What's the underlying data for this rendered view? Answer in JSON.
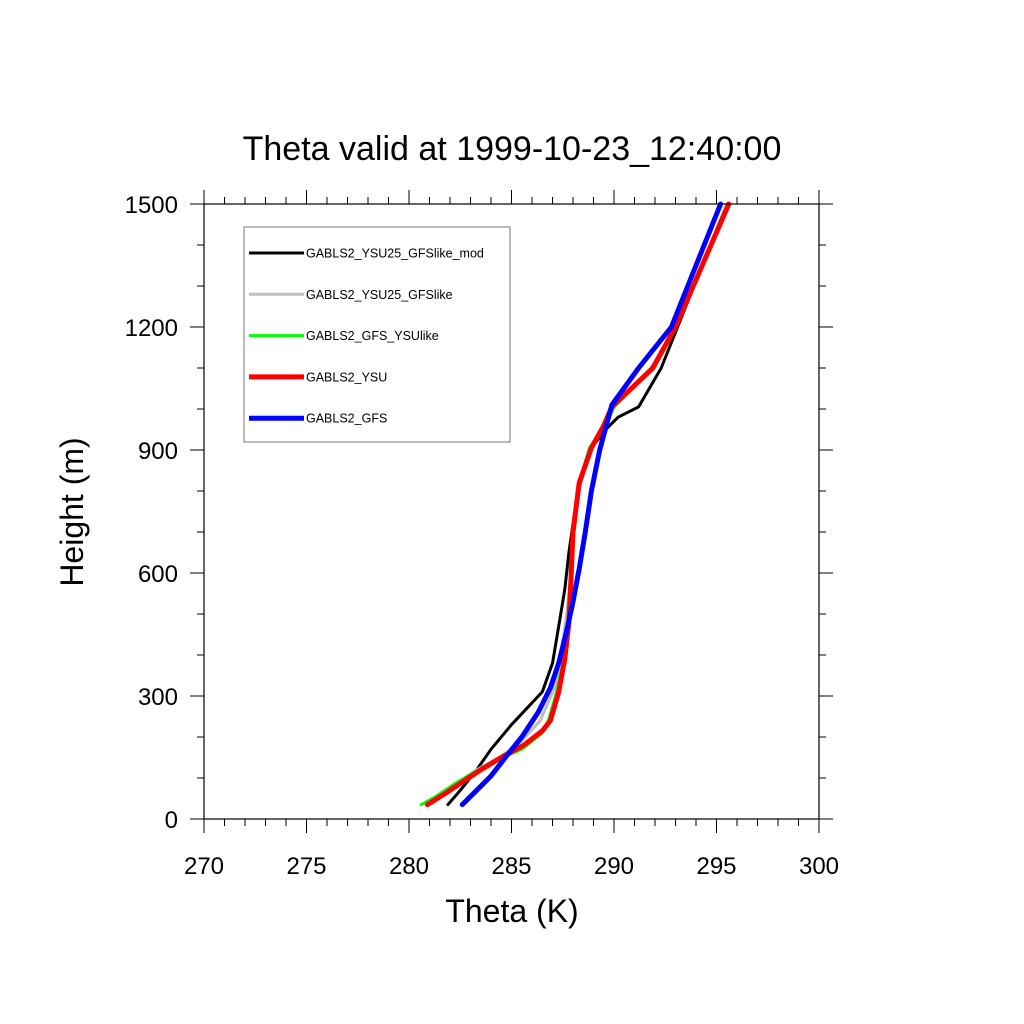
{
  "chart_data": {
    "type": "line",
    "title": "Theta valid at 1999-10-23_12:40:00",
    "xlabel": "Theta (K)",
    "ylabel": "Height (m)",
    "xlim": [
      270,
      300
    ],
    "ylim": [
      0,
      1500
    ],
    "x_ticks": [
      270,
      275,
      280,
      285,
      290,
      295,
      300
    ],
    "y_ticks": [
      0,
      300,
      600,
      900,
      1200,
      1500
    ],
    "x_minor_step": 1,
    "y_minor_step": 100,
    "grid": false,
    "legend_position": "top-left",
    "series": [
      {
        "name": "GABLS2_YSU25_GFSlike_mod",
        "color": "#000000",
        "points": [
          [
            281.9,
            35
          ],
          [
            282.5,
            70
          ],
          [
            283.3,
            120
          ],
          [
            284.0,
            170
          ],
          [
            285.0,
            230
          ],
          [
            286.5,
            310
          ],
          [
            287.0,
            380
          ],
          [
            287.3,
            470
          ],
          [
            287.6,
            560
          ],
          [
            287.8,
            650
          ],
          [
            288.0,
            720
          ],
          [
            288.3,
            810
          ],
          [
            288.9,
            905
          ],
          [
            289.6,
            950
          ],
          [
            290.2,
            980
          ],
          [
            291.2,
            1005
          ],
          [
            292.3,
            1100
          ],
          [
            293.1,
            1200
          ],
          [
            294.3,
            1350
          ],
          [
            295.5,
            1500
          ]
        ]
      },
      {
        "name": "GABLS2_YSU25_GFSlike",
        "color": "#bdbdbd",
        "points": [
          [
            280.9,
            35
          ],
          [
            281.6,
            60
          ],
          [
            282.4,
            90
          ],
          [
            283.3,
            120
          ],
          [
            284.4,
            150
          ],
          [
            285.4,
            185
          ],
          [
            286.4,
            240
          ],
          [
            287.1,
            320
          ],
          [
            287.4,
            400
          ],
          [
            287.7,
            500
          ],
          [
            287.9,
            600
          ],
          [
            288.0,
            700
          ],
          [
            288.3,
            810
          ],
          [
            288.8,
            905
          ],
          [
            289.5,
            960
          ],
          [
            290.0,
            1005
          ],
          [
            291.8,
            1100
          ],
          [
            293.0,
            1200
          ],
          [
            294.3,
            1350
          ],
          [
            295.5,
            1500
          ]
        ]
      },
      {
        "name": "GABLS2_GFS_YSUlike",
        "color": "#00ff00",
        "points": [
          [
            280.6,
            35
          ],
          [
            281.3,
            55
          ],
          [
            282.2,
            85
          ],
          [
            283.2,
            115
          ],
          [
            284.3,
            145
          ],
          [
            285.5,
            170
          ],
          [
            286.5,
            210
          ],
          [
            286.8,
            240
          ],
          [
            287.2,
            310
          ],
          [
            287.5,
            380
          ],
          [
            287.8,
            480
          ],
          [
            287.9,
            580
          ],
          [
            288.0,
            700
          ],
          [
            288.3,
            820
          ],
          [
            288.8,
            905
          ],
          [
            289.6,
            960
          ],
          [
            290.0,
            1005
          ],
          [
            291.9,
            1100
          ],
          [
            293.0,
            1200
          ],
          [
            294.3,
            1350
          ],
          [
            295.6,
            1500
          ]
        ]
      },
      {
        "name": "GABLS2_YSU",
        "color": "#ff0000",
        "points": [
          [
            280.9,
            35
          ],
          [
            281.7,
            60
          ],
          [
            282.6,
            90
          ],
          [
            283.5,
            120
          ],
          [
            284.5,
            150
          ],
          [
            285.6,
            180
          ],
          [
            286.5,
            215
          ],
          [
            286.9,
            240
          ],
          [
            287.3,
            310
          ],
          [
            287.6,
            390
          ],
          [
            287.8,
            480
          ],
          [
            287.9,
            580
          ],
          [
            288.0,
            700
          ],
          [
            288.3,
            820
          ],
          [
            288.9,
            905
          ],
          [
            289.5,
            960
          ],
          [
            289.9,
            1005
          ],
          [
            291.9,
            1100
          ],
          [
            293.0,
            1200
          ],
          [
            294.3,
            1350
          ],
          [
            295.6,
            1500
          ]
        ]
      },
      {
        "name": "GABLS2_GFS",
        "color": "#0000ff",
        "points": [
          [
            282.6,
            35
          ],
          [
            283.3,
            70
          ],
          [
            284.0,
            105
          ],
          [
            284.7,
            150
          ],
          [
            285.5,
            200
          ],
          [
            286.3,
            260
          ],
          [
            286.9,
            320
          ],
          [
            287.3,
            380
          ],
          [
            287.7,
            460
          ],
          [
            288.0,
            530
          ],
          [
            288.3,
            610
          ],
          [
            288.6,
            700
          ],
          [
            288.9,
            800
          ],
          [
            289.3,
            900
          ],
          [
            289.9,
            1010
          ],
          [
            291.2,
            1100
          ],
          [
            292.8,
            1200
          ],
          [
            294.0,
            1350
          ],
          [
            295.2,
            1500
          ]
        ]
      }
    ]
  }
}
